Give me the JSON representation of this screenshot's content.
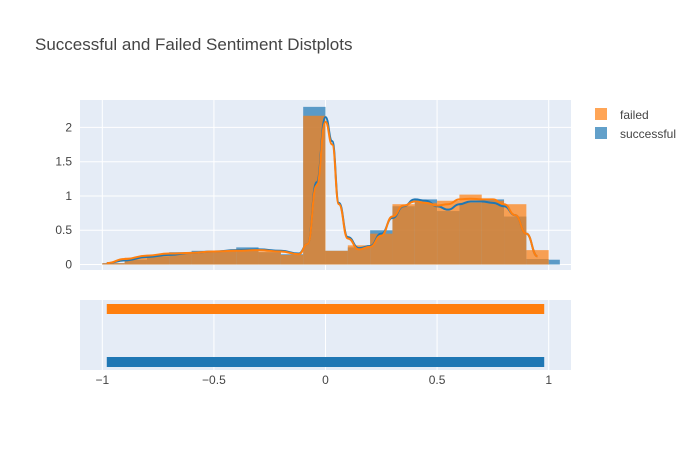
{
  "chart_data": {
    "type": "histogram",
    "title": "Successful and Failed Sentiment Distplots",
    "xlim": [
      -1.1,
      1.1
    ],
    "ylim": [
      -0.08,
      2.4
    ],
    "x_ticks": [
      -1,
      -0.5,
      0,
      0.5,
      1
    ],
    "x_tick_labels": [
      "−1",
      "−0.5",
      "0",
      "0.5",
      "1"
    ],
    "y_ticks": [
      0,
      0.5,
      1,
      1.5,
      2
    ],
    "y_tick_labels": [
      "0",
      "0.5",
      "1",
      "1.5",
      "2"
    ],
    "bin_edges": [
      -1.0,
      -0.9,
      -0.8,
      -0.7,
      -0.6,
      -0.5,
      -0.4,
      -0.3,
      -0.2,
      -0.1,
      0.0,
      0.1,
      0.2,
      0.3,
      0.4,
      0.5,
      0.6,
      0.7,
      0.8,
      0.9,
      1.0,
      1.05
    ],
    "legend_position": "top-right",
    "series": [
      {
        "name": "successful",
        "color": "#1f77b4",
        "hist": [
          0.02,
          0.07,
          0.12,
          0.18,
          0.2,
          0.2,
          0.25,
          0.18,
          0.15,
          2.3,
          0.2,
          0.25,
          0.5,
          0.85,
          0.95,
          0.78,
          0.9,
          0.95,
          0.7,
          0.08,
          0.07
        ],
        "kde_x": [
          -0.98,
          -0.9,
          -0.8,
          -0.7,
          -0.6,
          -0.5,
          -0.4,
          -0.3,
          -0.2,
          -0.12,
          -0.08,
          -0.04,
          0.0,
          0.03,
          0.06,
          0.1,
          0.15,
          0.2,
          0.25,
          0.3,
          0.35,
          0.4,
          0.45,
          0.5,
          0.55,
          0.6,
          0.65,
          0.7,
          0.75,
          0.8,
          0.85,
          0.9,
          0.95
        ],
        "kde_y": [
          0.02,
          0.06,
          0.11,
          0.14,
          0.17,
          0.19,
          0.21,
          0.22,
          0.2,
          0.16,
          0.3,
          1.2,
          2.15,
          1.8,
          0.9,
          0.4,
          0.24,
          0.27,
          0.45,
          0.68,
          0.85,
          0.95,
          0.93,
          0.85,
          0.8,
          0.88,
          0.92,
          0.92,
          0.9,
          0.85,
          0.72,
          0.45,
          0.12
        ],
        "rug_y": 0
      },
      {
        "name": "failed",
        "color": "#ff7f0e",
        "hist": [
          0.02,
          0.1,
          0.14,
          0.17,
          0.18,
          0.19,
          0.22,
          0.19,
          0.14,
          2.17,
          0.2,
          0.28,
          0.45,
          0.88,
          0.9,
          0.93,
          1.02,
          0.93,
          0.88,
          0.21,
          0.0
        ],
        "kde_x": [
          -0.98,
          -0.9,
          -0.8,
          -0.7,
          -0.6,
          -0.5,
          -0.4,
          -0.3,
          -0.2,
          -0.12,
          -0.08,
          -0.04,
          0.0,
          0.03,
          0.06,
          0.1,
          0.15,
          0.2,
          0.25,
          0.3,
          0.35,
          0.4,
          0.45,
          0.5,
          0.55,
          0.6,
          0.65,
          0.7,
          0.75,
          0.8,
          0.85,
          0.9,
          0.95
        ],
        "kde_y": [
          0.02,
          0.08,
          0.13,
          0.16,
          0.17,
          0.19,
          0.2,
          0.21,
          0.19,
          0.15,
          0.3,
          1.15,
          2.08,
          1.75,
          0.88,
          0.38,
          0.22,
          0.26,
          0.42,
          0.7,
          0.86,
          0.92,
          0.9,
          0.86,
          0.88,
          0.95,
          0.96,
          0.95,
          0.95,
          0.88,
          0.72,
          0.45,
          0.12
        ],
        "rug_y": 1
      }
    ]
  }
}
